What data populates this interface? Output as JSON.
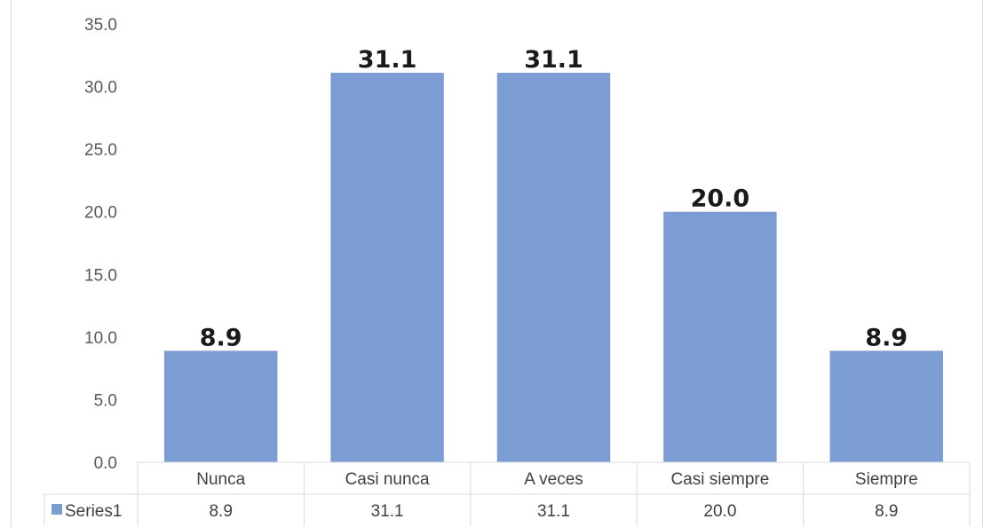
{
  "chart_data": {
    "type": "bar",
    "categories": [
      "Nunca",
      "Casi nunca",
      "A veces",
      "Casi siempre",
      "Siempre"
    ],
    "series": [
      {
        "name": "Series1",
        "values": [
          8.9,
          31.1,
          31.1,
          20.0,
          8.9
        ],
        "color": "#7b9dd4"
      }
    ],
    "ylim": [
      0,
      35
    ],
    "yticks": [
      "0.0",
      "5.0",
      "10.0",
      "15.0",
      "20.0",
      "25.0",
      "30.0",
      "35.0"
    ],
    "data_labels": [
      "8.9",
      "31.1",
      "31.1",
      "20.0",
      "8.9"
    ],
    "table_values": [
      "8.9",
      "31.1",
      "31.1",
      "20.0",
      "8.9"
    ],
    "gridlines": false,
    "legend": "data-table",
    "colors": {
      "bar": "#7b9dd4",
      "axis": "#d9d9d9",
      "text": "#404040"
    }
  }
}
